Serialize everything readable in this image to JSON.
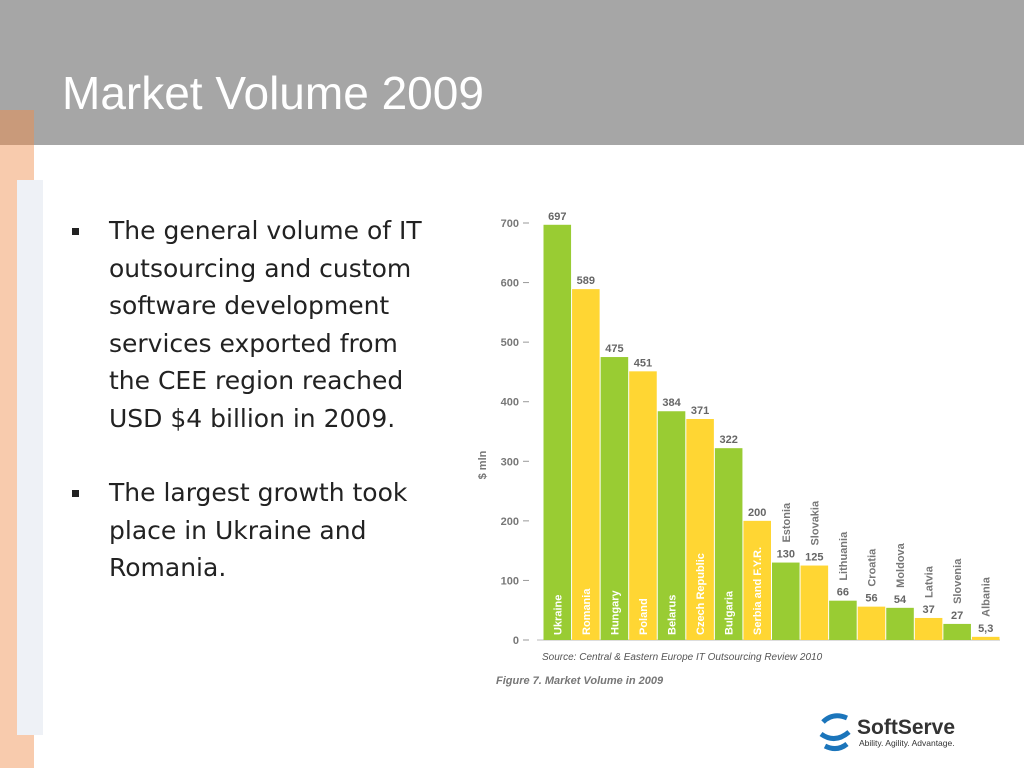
{
  "slide": {
    "title": "Market Volume 2009",
    "bullets": [
      "The general volume of IT outsourcing and custom software development services exported from the CEE region reached USD $4 billion in 2009.",
      "The largest growth took place in Ukraine and Romania."
    ],
    "logo": {
      "name": "SoftServe",
      "tagline": "Ability. Agility. Advantage."
    }
  },
  "chart_data": {
    "type": "bar",
    "y_label": "$ mln",
    "categories": [
      "Ukraine",
      "Romania",
      "Hungary",
      "Poland",
      "Belarus",
      "Czech Republic",
      "Bulgaria",
      "Serbia and F.Y.R.",
      "Estonia",
      "Slovakia",
      "Lithuania",
      "Croatia",
      "Moldova",
      "Latvia",
      "Slovenia",
      "Albania"
    ],
    "values": [
      697,
      589,
      475,
      451,
      384,
      371,
      322,
      200,
      130,
      125,
      66,
      56,
      54,
      37,
      27,
      5.3
    ],
    "value_labels": [
      "697",
      "589",
      "475",
      "451",
      "384",
      "371",
      "322",
      "200",
      "130",
      "125",
      "66",
      "56",
      "54",
      "37",
      "27",
      "5,3"
    ],
    "colors": [
      "#99cc33",
      "#ffd633"
    ],
    "ylim": [
      0,
      700
    ],
    "yticks": [
      0,
      100,
      200,
      300,
      400,
      500,
      600,
      700
    ],
    "source": "Source: Central & Eastern Europe IT Outsourcing Review 2010",
    "caption": "Figure 7. Market Volume in 2009"
  }
}
